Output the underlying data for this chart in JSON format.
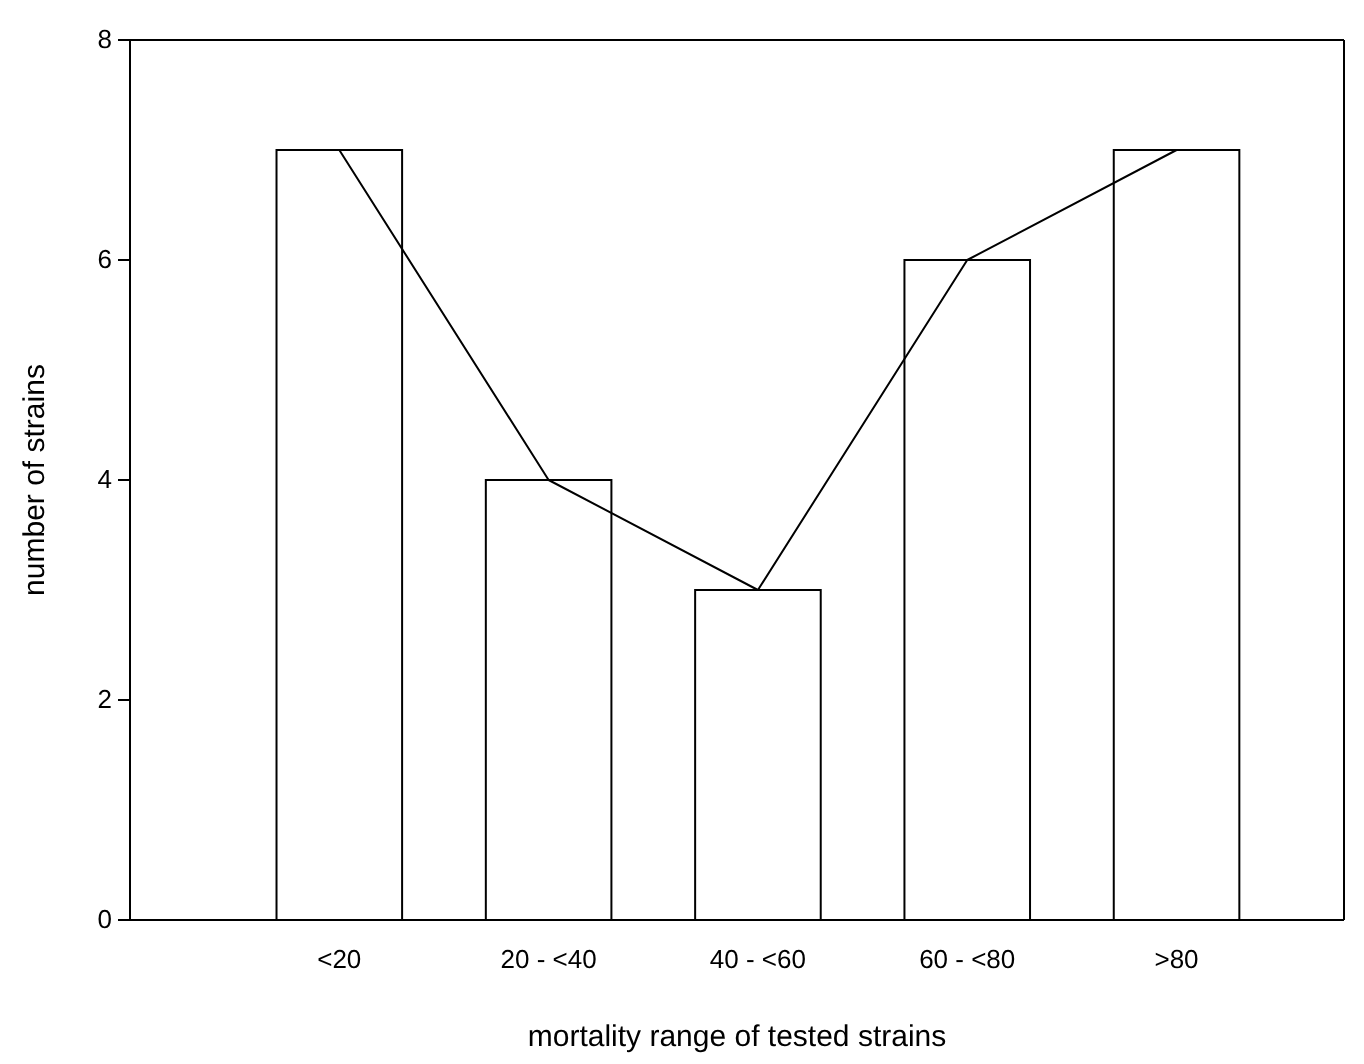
{
  "chart_data": {
    "type": "bar",
    "xlabel": "mortality range of tested strains",
    "ylabel": "number of strains",
    "categories": [
      "<20",
      "20 - <40",
      "40 - <60",
      "60 - <80",
      ">80"
    ],
    "series": [
      {
        "color": "#ffffff",
        "values": [
          7,
          4,
          3,
          6,
          7
        ]
      },
      {
        "type": "line",
        "color": "#000000",
        "values": [
          7,
          4,
          3,
          6,
          7
        ]
      }
    ],
    "ylim": [
      0,
      8
    ],
    "yticks": [
      0,
      2,
      4,
      6,
      8
    ],
    "grid": false,
    "marker": "none"
  }
}
